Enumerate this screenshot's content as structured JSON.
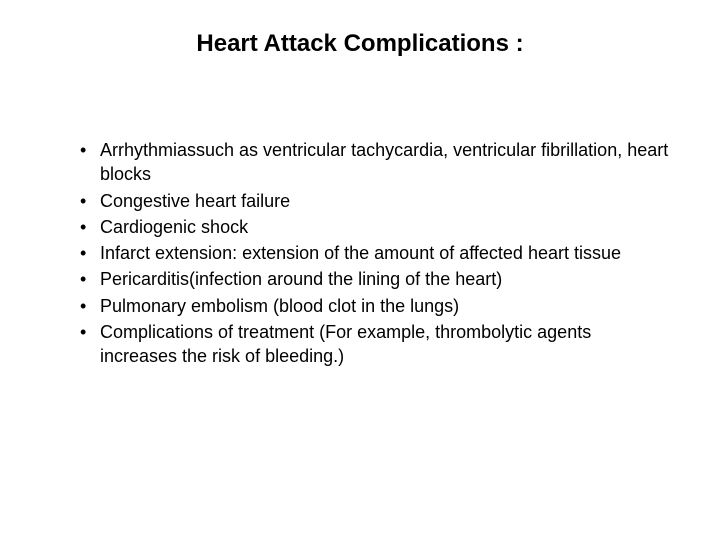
{
  "slide": {
    "title": "Heart Attack Complications :",
    "bullets": [
      "Arrhythmiassuch as ventricular tachycardia, ventricular fibrillation, heart blocks",
      "Congestive heart failure",
      "Cardiogenic shock",
      "Infarct extension: extension of the amount of affected heart tissue",
      "Pericarditis(infection around the lining of the heart)",
      "Pulmonary embolism (blood clot in the lungs)",
      "Complications of treatment (For example, thrombolytic agents increases the risk of bleeding.)"
    ],
    "styling": {
      "background_color": "#ffffff",
      "text_color": "#000000",
      "title_fontsize": 24,
      "title_fontweight": "bold",
      "body_fontsize": 18,
      "font_family": "Arial"
    }
  }
}
